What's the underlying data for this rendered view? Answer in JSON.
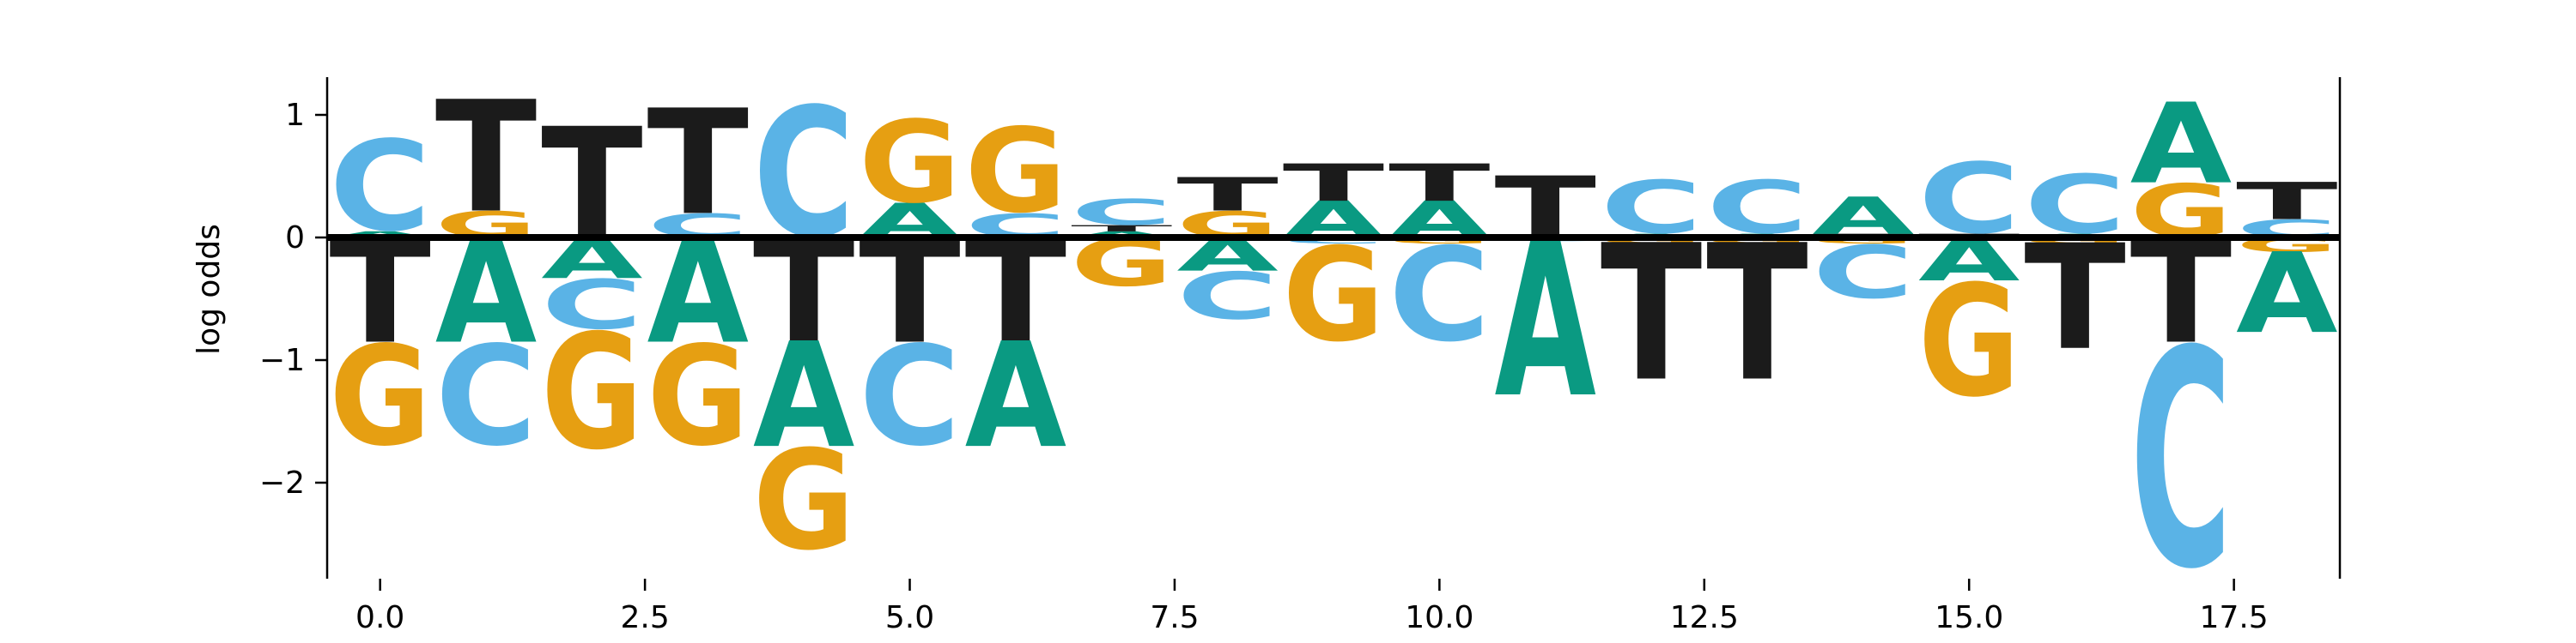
{
  "chart_data": {
    "type": "sequence-logo",
    "title": "",
    "xlabel": "",
    "ylabel": "log odds",
    "xlim": [
      -0.5,
      18.5
    ],
    "ylim": [
      -2.8,
      1.3
    ],
    "x_ticks": [
      "0.0",
      "2.5",
      "5.0",
      "7.5",
      "10.0",
      "12.5",
      "15.0",
      "17.5"
    ],
    "x_tick_values": [
      0,
      2.5,
      5,
      7.5,
      10,
      12.5,
      15,
      17.5
    ],
    "y_ticks": [
      "1",
      "0",
      "−1",
      "−2"
    ],
    "y_tick_values": [
      1,
      0,
      -1,
      -2
    ],
    "baseline": 0,
    "grid": false,
    "colors": {
      "A": "#0a9a82",
      "C": "#5ab3e6",
      "G": "#e69f12",
      "T": "#1b1b1b"
    },
    "positions": [
      {
        "x": 0,
        "letters": [
          {
            "base": "A",
            "value": 0.05
          },
          {
            "base": "C",
            "value": 0.77
          },
          {
            "base": "T",
            "value": -0.85
          },
          {
            "base": "G",
            "value": -0.85
          }
        ]
      },
      {
        "x": 1,
        "letters": [
          {
            "base": "G",
            "value": 0.22
          },
          {
            "base": "T",
            "value": 0.9
          },
          {
            "base": "A",
            "value": -0.85
          },
          {
            "base": "C",
            "value": -0.85
          }
        ]
      },
      {
        "x": 2,
        "letters": [
          {
            "base": "T",
            "value": 0.9
          },
          {
            "base": "A",
            "value": -0.33
          },
          {
            "base": "C",
            "value": -0.42
          },
          {
            "base": "G",
            "value": -0.98
          }
        ]
      },
      {
        "x": 3,
        "letters": [
          {
            "base": "C",
            "value": 0.2
          },
          {
            "base": "T",
            "value": 0.85
          },
          {
            "base": "A",
            "value": -0.85
          },
          {
            "base": "G",
            "value": -0.85
          }
        ]
      },
      {
        "x": 4,
        "letters": [
          {
            "base": "C",
            "value": 1.1
          },
          {
            "base": "T",
            "value": -0.85
          },
          {
            "base": "A",
            "value": -0.85
          },
          {
            "base": "G",
            "value": -0.85
          }
        ]
      },
      {
        "x": 5,
        "letters": [
          {
            "base": "A",
            "value": 0.28
          },
          {
            "base": "G",
            "value": 0.7
          },
          {
            "base": "T",
            "value": -0.85
          },
          {
            "base": "C",
            "value": -0.85
          }
        ]
      },
      {
        "x": 6,
        "letters": [
          {
            "base": "C",
            "value": 0.2
          },
          {
            "base": "G",
            "value": 0.72
          },
          {
            "base": "T",
            "value": -0.85
          },
          {
            "base": "A",
            "value": -0.85
          }
        ]
      },
      {
        "x": 7,
        "letters": [
          {
            "base": "A",
            "value": 0.05
          },
          {
            "base": "T",
            "value": 0.05
          },
          {
            "base": "C",
            "value": 0.22
          },
          {
            "base": "G",
            "value": -0.4
          }
        ]
      },
      {
        "x": 8,
        "letters": [
          {
            "base": "G",
            "value": 0.22
          },
          {
            "base": "T",
            "value": 0.27
          },
          {
            "base": "A",
            "value": -0.27
          },
          {
            "base": "C",
            "value": -0.4
          }
        ]
      },
      {
        "x": 9,
        "letters": [
          {
            "base": "A",
            "value": 0.3
          },
          {
            "base": "T",
            "value": 0.3
          },
          {
            "base": "C",
            "value": -0.05
          },
          {
            "base": "G",
            "value": -0.8
          }
        ]
      },
      {
        "x": 10,
        "letters": [
          {
            "base": "A",
            "value": 0.3
          },
          {
            "base": "T",
            "value": 0.3
          },
          {
            "base": "G",
            "value": -0.05
          },
          {
            "base": "C",
            "value": -0.8
          }
        ]
      },
      {
        "x": 11,
        "letters": [
          {
            "base": "T",
            "value": 0.5
          },
          {
            "base": "C",
            "value": -0.03
          },
          {
            "base": "A",
            "value": -1.25
          }
        ]
      },
      {
        "x": 12,
        "letters": [
          {
            "base": "A",
            "value": 0.03
          },
          {
            "base": "C",
            "value": 0.45
          },
          {
            "base": "G",
            "value": -0.05
          },
          {
            "base": "T",
            "value": -1.1
          }
        ]
      },
      {
        "x": 13,
        "letters": [
          {
            "base": "A",
            "value": 0.03
          },
          {
            "base": "C",
            "value": 0.45
          },
          {
            "base": "G",
            "value": -0.05
          },
          {
            "base": "T",
            "value": -1.1
          }
        ]
      },
      {
        "x": 14,
        "letters": [
          {
            "base": "T",
            "value": 0.03
          },
          {
            "base": "A",
            "value": 0.3
          },
          {
            "base": "G",
            "value": -0.05
          },
          {
            "base": "C",
            "value": -0.45
          }
        ]
      },
      {
        "x": 15,
        "letters": [
          {
            "base": "T",
            "value": 0.03
          },
          {
            "base": "C",
            "value": 0.6
          },
          {
            "base": "A",
            "value": -0.35
          },
          {
            "base": "G",
            "value": -0.95
          }
        ]
      },
      {
        "x": 16,
        "letters": [
          {
            "base": "A",
            "value": 0.03
          },
          {
            "base": "C",
            "value": 0.5
          },
          {
            "base": "G",
            "value": -0.05
          },
          {
            "base": "T",
            "value": -0.85
          }
        ]
      },
      {
        "x": 17,
        "letters": [
          {
            "base": "G",
            "value": 0.45
          },
          {
            "base": "A",
            "value": 0.65
          },
          {
            "base": "T",
            "value": -0.85
          },
          {
            "base": "C",
            "value": -1.85
          }
        ]
      },
      {
        "x": 18,
        "letters": [
          {
            "base": "C",
            "value": 0.15
          },
          {
            "base": "T",
            "value": 0.3
          },
          {
            "base": "G",
            "value": -0.12
          },
          {
            "base": "A",
            "value": -0.65
          }
        ]
      }
    ]
  }
}
